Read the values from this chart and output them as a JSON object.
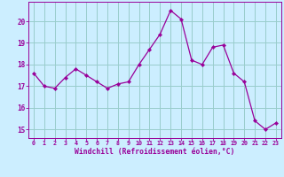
{
  "x": [
    0,
    1,
    2,
    3,
    4,
    5,
    6,
    7,
    8,
    9,
    10,
    11,
    12,
    13,
    14,
    15,
    16,
    17,
    18,
    19,
    20,
    21,
    22,
    23
  ],
  "y": [
    17.6,
    17.0,
    16.9,
    17.4,
    17.8,
    17.5,
    17.2,
    16.9,
    17.1,
    17.2,
    18.0,
    18.7,
    19.4,
    20.5,
    20.1,
    18.2,
    18.0,
    18.8,
    18.9,
    17.6,
    17.2,
    15.4,
    15.0,
    15.3
  ],
  "line_color": "#990099",
  "marker": "D",
  "marker_size": 2.2,
  "bg_color": "#cceeff",
  "grid_color": "#99cccc",
  "xlabel": "Windchill (Refroidissement éolien,°C)",
  "xlabel_color": "#990099",
  "tick_color": "#990099",
  "ylabel_ticks": [
    15,
    16,
    17,
    18,
    19,
    20
  ],
  "xlim": [
    -0.5,
    23.5
  ],
  "ylim": [
    14.6,
    20.9
  ]
}
